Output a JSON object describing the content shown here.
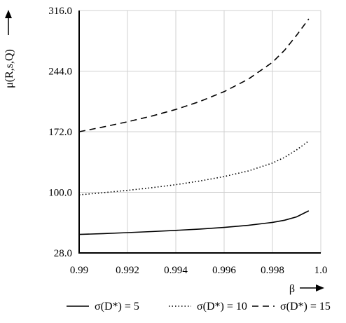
{
  "chart_data": {
    "type": "line",
    "xlabel": "β",
    "ylabel": "μ(R,s,Q)",
    "xlim": [
      0.99,
      1.0
    ],
    "ylim": [
      28.0,
      316.0
    ],
    "x_ticks": [
      "0.99",
      "0.992",
      "0.994",
      "0.996",
      "0.998",
      "1.0"
    ],
    "y_ticks": [
      "28.0",
      "100.0",
      "172.0",
      "244.0",
      "316.0"
    ],
    "grid": true,
    "legend_position": "bottom",
    "x": [
      0.99,
      0.991,
      0.992,
      0.993,
      0.994,
      0.995,
      0.996,
      0.997,
      0.998,
      0.9985,
      0.999,
      0.9995
    ],
    "series": [
      {
        "name": "σ(D*) = 5",
        "style": "solid",
        "values": [
          50.0,
          51.0,
          52.1,
          53.4,
          54.8,
          56.4,
          58.3,
          60.8,
          64.3,
          66.9,
          70.9,
          78.0
        ]
      },
      {
        "name": "σ(D*) = 10",
        "style": "dotted",
        "values": [
          97.0,
          99.6,
          102.3,
          105.5,
          109.1,
          113.5,
          118.7,
          125.4,
          134.8,
          141.5,
          150.4,
          161.0
        ]
      },
      {
        "name": "σ(D*) = 15",
        "style": "dashed",
        "values": [
          172.0,
          177.7,
          183.8,
          190.6,
          198.5,
          208.0,
          219.6,
          234.4,
          254.5,
          268.8,
          286.6,
          306.0
        ]
      }
    ]
  }
}
